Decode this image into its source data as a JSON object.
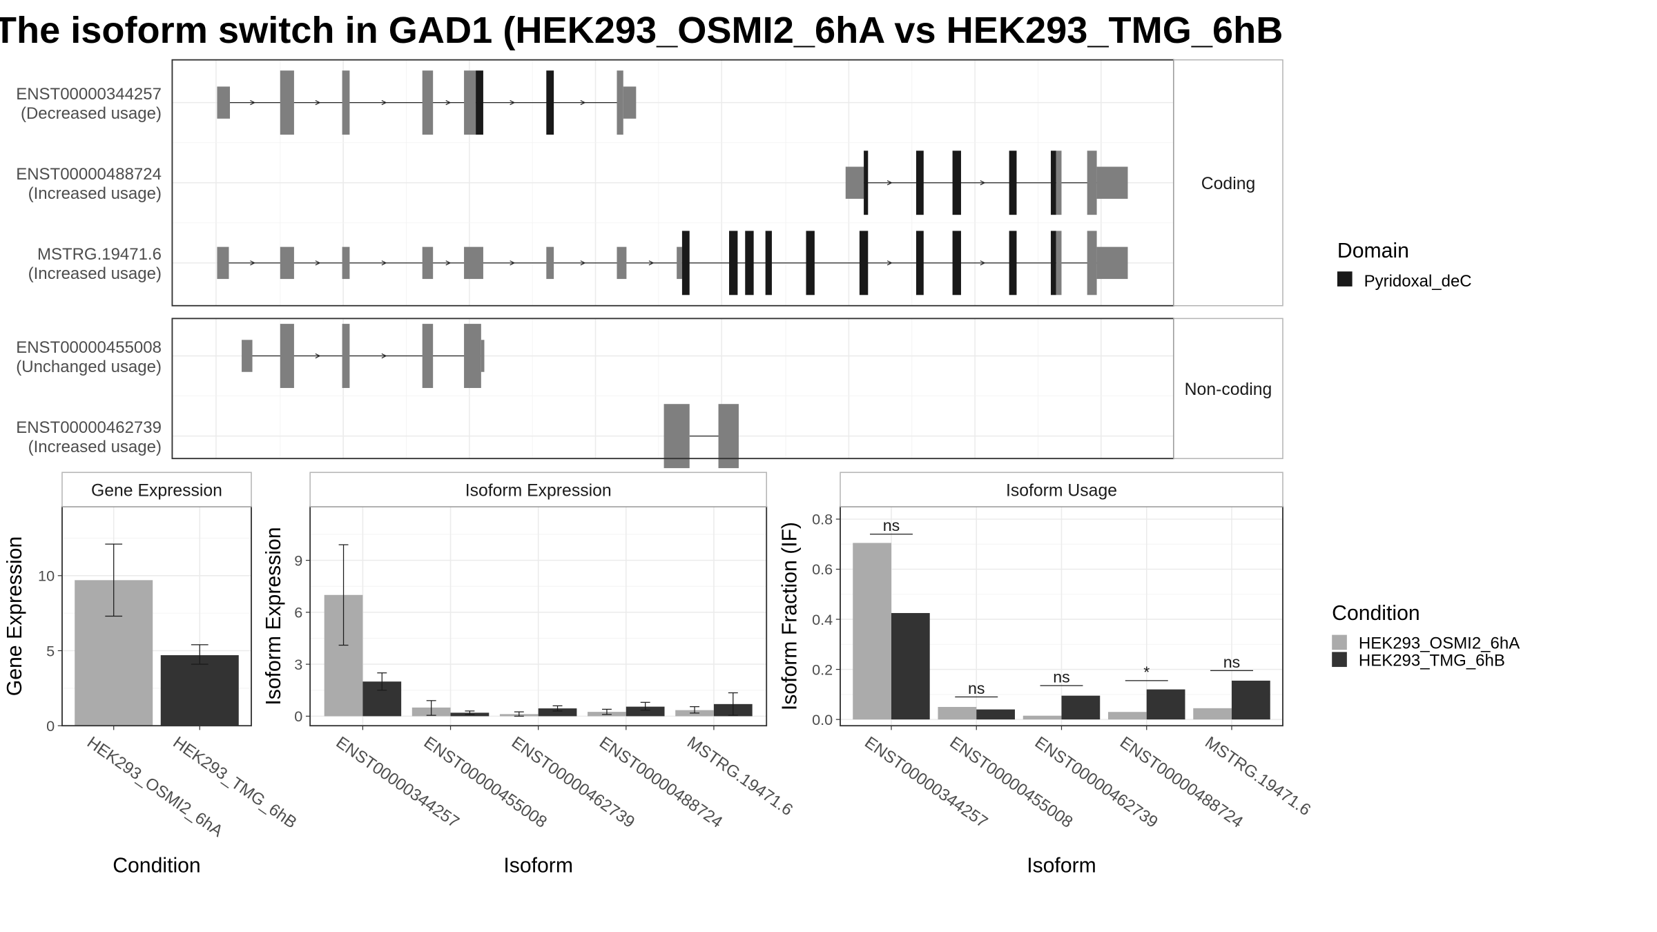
{
  "title": "The isoform switch in GAD1 (HEK293_OSMI2_6hA vs HEK293_TMG_6hB",
  "colors": {
    "cond_a": "#ababab",
    "cond_b": "#333333",
    "utr": "#7f7f7f",
    "domain": "#191919",
    "grid": "#ebebeb",
    "strip_fill": "#ffffff",
    "panel_border": "#333333",
    "strip_border": "#b5b5b5",
    "text": "#4d4d4d"
  },
  "transcript_plot": {
    "facets": [
      {
        "label": "Coding",
        "transcripts": [
          {
            "id": "ENST00000344257",
            "usage": "(Decreased usage)",
            "intron": [
              210,
              582
            ],
            "exons": [
              {
                "s": 203,
                "e": 215,
                "k": "utr"
              },
              {
                "s": 262,
                "e": 275,
                "k": "cds"
              },
              {
                "s": 320,
                "e": 327,
                "k": "cds"
              },
              {
                "s": 395,
                "e": 405,
                "k": "cds"
              },
              {
                "s": 434,
                "e": 445,
                "k": "cds"
              },
              {
                "s": 445,
                "e": 452,
                "k": "domain"
              },
              {
                "s": 511,
                "e": 518,
                "k": "domain"
              },
              {
                "s": 577,
                "e": 583,
                "k": "cds"
              },
              {
                "s": 583,
                "e": 595,
                "k": "utr"
              }
            ],
            "arrows": [
              237,
              298,
              360,
              420,
              480,
              546
            ]
          },
          {
            "id": "ENST00000488724",
            "usage": "(Increased usage)",
            "intron": [
              795,
              1050
            ],
            "exons": [
              {
                "s": 791,
                "e": 808,
                "k": "utr"
              },
              {
                "s": 808,
                "e": 812,
                "k": "domain"
              },
              {
                "s": 857,
                "e": 864,
                "k": "domain"
              },
              {
                "s": 891,
                "e": 899,
                "k": "domain"
              },
              {
                "s": 944,
                "e": 951,
                "k": "domain"
              },
              {
                "s": 983,
                "e": 988,
                "k": "domain"
              },
              {
                "s": 988,
                "e": 993,
                "k": "cds"
              },
              {
                "s": 1017,
                "e": 1026,
                "k": "cds"
              },
              {
                "s": 1026,
                "e": 1055,
                "k": "utr"
              }
            ],
            "arrows": [
              833,
              920
            ]
          },
          {
            "id": "MSTRG.19471.6",
            "usage": "(Increased usage)",
            "intron": [
              208,
              1050
            ],
            "exons": [
              {
                "s": 203,
                "e": 214,
                "k": "utr"
              },
              {
                "s": 262,
                "e": 275,
                "k": "utr"
              },
              {
                "s": 320,
                "e": 327,
                "k": "utr"
              },
              {
                "s": 395,
                "e": 405,
                "k": "utr"
              },
              {
                "s": 434,
                "e": 452,
                "k": "utr"
              },
              {
                "s": 511,
                "e": 518,
                "k": "utr"
              },
              {
                "s": 577,
                "e": 586,
                "k": "utr"
              },
              {
                "s": 633,
                "e": 638,
                "k": "utr"
              },
              {
                "s": 638,
                "e": 645,
                "k": "domain"
              },
              {
                "s": 682,
                "e": 690,
                "k": "domain"
              },
              {
                "s": 697,
                "e": 705,
                "k": "domain"
              },
              {
                "s": 716,
                "e": 722,
                "k": "domain"
              },
              {
                "s": 754,
                "e": 762,
                "k": "domain"
              },
              {
                "s": 804,
                "e": 812,
                "k": "domain"
              },
              {
                "s": 857,
                "e": 864,
                "k": "domain"
              },
              {
                "s": 891,
                "e": 899,
                "k": "domain"
              },
              {
                "s": 944,
                "e": 951,
                "k": "domain"
              },
              {
                "s": 983,
                "e": 988,
                "k": "domain"
              },
              {
                "s": 988,
                "e": 993,
                "k": "cds"
              },
              {
                "s": 1017,
                "e": 1026,
                "k": "cds"
              },
              {
                "s": 1026,
                "e": 1055,
                "k": "utr"
              }
            ],
            "arrows": [
              237,
              298,
              360,
              420,
              480,
              546,
              610,
              833,
              920
            ]
          }
        ]
      },
      {
        "label": "Non-coding",
        "transcripts": [
          {
            "id": "ENST00000455008",
            "usage": "(Unchanged usage)",
            "intron": [
              232,
              450
            ],
            "exons": [
              {
                "s": 226,
                "e": 236,
                "k": "utr"
              },
              {
                "s": 262,
                "e": 275,
                "k": "cds"
              },
              {
                "s": 320,
                "e": 327,
                "k": "cds"
              },
              {
                "s": 395,
                "e": 405,
                "k": "cds"
              },
              {
                "s": 434,
                "e": 450,
                "k": "cds"
              },
              {
                "s": 450,
                "e": 453,
                "k": "utr"
              }
            ],
            "arrows": [
              298,
              360
            ]
          },
          {
            "id": "ENST00000462739",
            "usage": "(Increased usage)",
            "intron": [
              645,
              672
            ],
            "exons": [
              {
                "s": 621,
                "e": 645,
                "k": "cds"
              },
              {
                "s": 672,
                "e": 691,
                "k": "cds"
              }
            ],
            "arrows": []
          }
        ]
      }
    ],
    "legend": {
      "title": "Domain",
      "items": [
        {
          "label": "Pyridoxal_deC",
          "color": "#191919"
        }
      ]
    }
  },
  "chart_data": [
    {
      "type": "bar",
      "title": "Gene Expression",
      "xlabel": "Condition",
      "ylabel": "Gene Expression",
      "categories": [
        "HEK293_OSMI2_6hA",
        "HEK293_TMG_6hB"
      ],
      "values": [
        9.7,
        4.7
      ],
      "err_lo": [
        7.3,
        4.1
      ],
      "err_hi": [
        12.1,
        5.4
      ],
      "ylim": [
        0,
        14.6
      ],
      "yticks": [
        0,
        5,
        10
      ]
    },
    {
      "type": "bar",
      "title": "Isoform Expression",
      "xlabel": "Isoform",
      "ylabel": "Isoform Expression",
      "categories": [
        "ENST00000344257",
        "ENST00000455008",
        "ENST00000462739",
        "ENST00000488724",
        "MSTRG.19471.6"
      ],
      "series": [
        {
          "name": "HEK293_OSMI2_6hA",
          "values": [
            7.0,
            0.5,
            0.12,
            0.25,
            0.35
          ],
          "err_lo": [
            4.1,
            0.05,
            0.0,
            0.1,
            0.18
          ],
          "err_hi": [
            9.9,
            0.9,
            0.25,
            0.4,
            0.55
          ]
        },
        {
          "name": "HEK293_TMG_6hB",
          "values": [
            2.0,
            0.2,
            0.45,
            0.55,
            0.7
          ],
          "err_lo": [
            1.5,
            0.1,
            0.3,
            0.35,
            0.05
          ],
          "err_hi": [
            2.5,
            0.3,
            0.6,
            0.8,
            1.35
          ]
        }
      ],
      "ylim": [
        -0.55,
        12.1
      ],
      "yticks": [
        0,
        3,
        6,
        9
      ]
    },
    {
      "type": "bar",
      "title": "Isoform Usage",
      "xlabel": "Isoform",
      "ylabel": "Isoform Fraction (IF)",
      "categories": [
        "ENST00000344257",
        "ENST00000455008",
        "ENST00000462739",
        "ENST00000488724",
        "MSTRG.19471.6"
      ],
      "series": [
        {
          "name": "HEK293_OSMI2_6hA",
          "values": [
            0.705,
            0.05,
            0.015,
            0.03,
            0.045
          ]
        },
        {
          "name": "HEK293_TMG_6hB",
          "values": [
            0.425,
            0.04,
            0.095,
            0.12,
            0.155
          ]
        }
      ],
      "significance": [
        "ns",
        "ns",
        "ns",
        "*",
        "ns"
      ],
      "sig_y": [
        0.74,
        0.09,
        0.135,
        0.155,
        0.195
      ],
      "ylim": [
        -0.025,
        0.85
      ],
      "yticks": [
        0.0,
        0.2,
        0.4,
        0.6,
        0.8
      ],
      "ytick_labels": [
        "0.0",
        "0.2",
        "0.4",
        "0.6",
        "0.8"
      ]
    }
  ],
  "condition_legend": {
    "title": "Condition",
    "items": [
      {
        "label": "HEK293_OSMI2_6hA",
        "color": "#ababab"
      },
      {
        "label": "HEK293_TMG_6hB",
        "color": "#333333"
      }
    ]
  }
}
